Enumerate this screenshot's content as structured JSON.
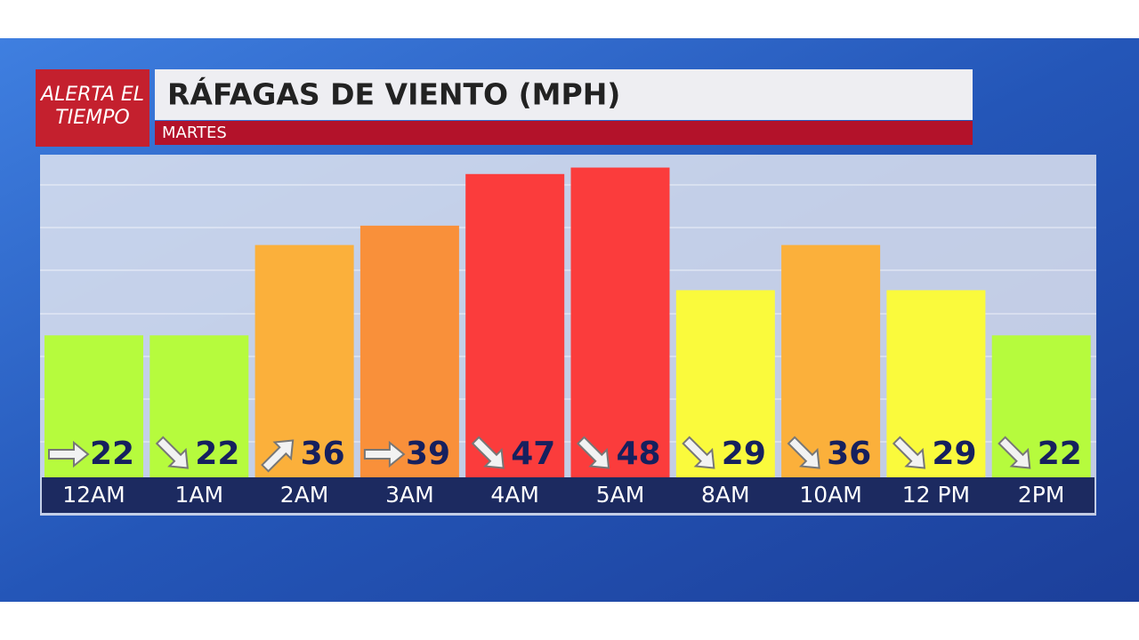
{
  "brand": {
    "line1": "ALERTA EL",
    "line2": "TIEMPO"
  },
  "chart_data": {
    "type": "bar",
    "title": "RÁFAGAS DE VIENTO (MPH)",
    "subtitle": "MARTES",
    "categories": [
      "12AM",
      "1AM",
      "2AM",
      "3AM",
      "4AM",
      "5AM",
      "8AM",
      "10AM",
      "12 PM",
      "2PM"
    ],
    "values": [
      22,
      22,
      36,
      39,
      47,
      48,
      29,
      36,
      29,
      22
    ],
    "colors": [
      "#b6fb3d",
      "#b6fb3d",
      "#fbb03b",
      "#f9903a",
      "#fb3c3c",
      "#fb3c3c",
      "#fafa3c",
      "#fbb03b",
      "#fafa3c",
      "#b6fb3d"
    ],
    "directions": [
      "E",
      "SE",
      "NE",
      "E",
      "SE",
      "SE",
      "SE",
      "SE",
      "SE",
      "SE"
    ],
    "ylim": [
      0,
      50
    ]
  }
}
